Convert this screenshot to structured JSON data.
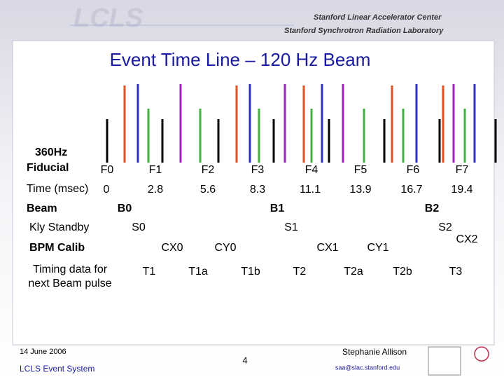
{
  "header": {
    "logo": "LCLS",
    "org1": "Stanford Linear Accelerator Center",
    "org2": "Stanford Synchrotron Radiation Laboratory"
  },
  "title": "Event Time Line – 120 Hz Beam",
  "rows": {
    "fiducial": {
      "label": [
        "360Hz",
        "Fiducial"
      ],
      "items": [
        "F0",
        "F1",
        "F2",
        "F3",
        "F4",
        "F5",
        "F6",
        "F7"
      ]
    },
    "time": {
      "label": "Time (msec)",
      "items": [
        "0",
        "2.8",
        "5.6",
        "8.3",
        "11.1",
        "13.9",
        "16.7",
        "19.4"
      ]
    },
    "beam": {
      "label": "Beam",
      "items": [
        "B0",
        "B1",
        "B2"
      ]
    },
    "kly": {
      "label": "Kly Standby",
      "items": [
        "S0",
        "S1",
        "S2"
      ]
    },
    "bpm": {
      "label": "BPM Calib",
      "items": [
        "CX0",
        "CY0",
        "CX1",
        "CY1",
        "CX2"
      ]
    },
    "timing": {
      "label": [
        "Timing data for",
        "next Beam pulse"
      ],
      "items": [
        "T1",
        "T1a",
        "T1b",
        "T2",
        "T2a",
        "T2b",
        "T3"
      ]
    }
  },
  "footer": {
    "date": "14 June 2006",
    "system": "LCLS Event System",
    "page": "4",
    "author": "Stephanie Allison",
    "email": "saa@slac.stanford.edu"
  }
}
